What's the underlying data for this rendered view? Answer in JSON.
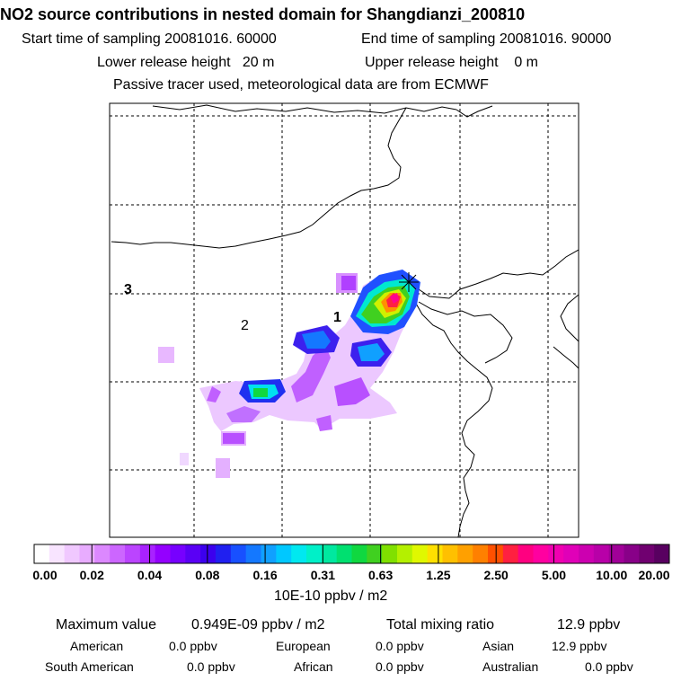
{
  "header": {
    "title": "NO2 source contributions in nested domain for Shangdianzi_200810",
    "start_time": "Start time of sampling 20081016. 60000",
    "end_time": "End time of sampling 20081016. 90000",
    "lower_release": "Lower release height   20 m",
    "upper_release": "Upper release height    0 m",
    "tracer_note": "Passive tracer used, meteorological data are from ECMWF"
  },
  "map": {
    "region_labels": [
      "3",
      "2",
      "1"
    ],
    "receptor_marker": "star-marker"
  },
  "colorbar": {
    "ticks": [
      "0.00",
      "0.02",
      "0.04",
      "0.08",
      "0.16",
      "0.31",
      "0.63",
      "1.25",
      "2.50",
      "5.00",
      "10.00",
      "20.00"
    ],
    "units": "10E-10 ppbv / m2",
    "colors": [
      "#ffffff",
      "#f8e4ff",
      "#f0c8ff",
      "#e8acff",
      "#dc88ff",
      "#cc66ff",
      "#bb44ff",
      "#a822ff",
      "#9400ff",
      "#7700ff",
      "#5a00f5",
      "#3c00ee",
      "#2020f0",
      "#1850ff",
      "#1478ff",
      "#10a0ff",
      "#00c8ff",
      "#00e8f0",
      "#00f0c8",
      "#00e8a0",
      "#00e070",
      "#10d840",
      "#40d020",
      "#80e000",
      "#b4f000",
      "#e0f800",
      "#ffe000",
      "#ffc000",
      "#ffa000",
      "#ff8000",
      "#ff5000",
      "#ff2040",
      "#ff0080",
      "#ff00a0",
      "#f000b0",
      "#e000b8",
      "#cc00b0",
      "#b800a8",
      "#a00098",
      "#880088",
      "#700070",
      "#580060"
    ]
  },
  "stats": {
    "max_label": "Maximum value",
    "max_value": "0.949E-09 ppbv / m2",
    "total_label": "Total mixing ratio",
    "total_value": "12.9 ppbv",
    "regions": [
      {
        "name": "American",
        "value": "0.0 ppbv"
      },
      {
        "name": "European",
        "value": "0.0 ppbv"
      },
      {
        "name": "Asian",
        "value": "12.9 ppbv"
      },
      {
        "name": "South American",
        "value": "0.0 ppbv"
      },
      {
        "name": "African",
        "value": "0.0 ppbv"
      },
      {
        "name": "Australian",
        "value": "0.0 ppbv"
      }
    ]
  }
}
